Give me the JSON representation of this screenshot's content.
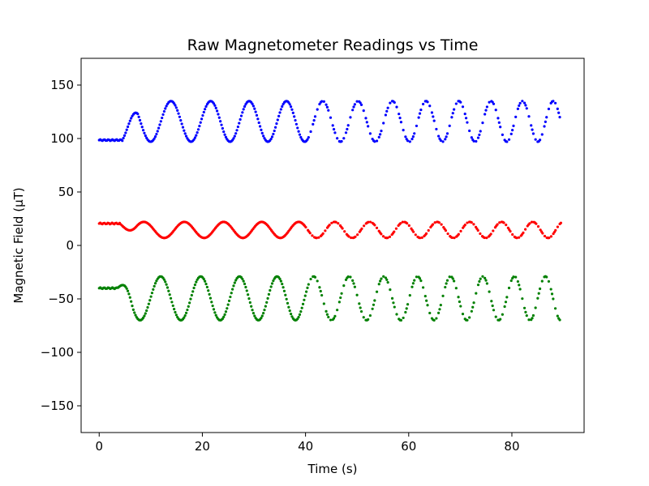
{
  "chart_data": {
    "type": "scatter",
    "title": "Raw Magnetometer Readings vs Time",
    "xlabel": "Time (s)",
    "ylabel": "Magnetic Field (µT)",
    "xlim": [
      -3.5,
      94
    ],
    "ylim": [
      -175,
      175
    ],
    "xticks": [
      0,
      20,
      40,
      60,
      80
    ],
    "yticks": [
      -150,
      -100,
      -50,
      0,
      50,
      100,
      150
    ],
    "grid": false,
    "legend": "none",
    "series": [
      {
        "color": "#0000ff",
        "offset": 116,
        "amplitude": 19,
        "baseline": 98.5,
        "phase": 3.3,
        "freq_start": 0.12,
        "freq_end": 0.145,
        "t_start": 0,
        "t_end": 89.5,
        "n_points": 420,
        "flat_until": 4.5
      },
      {
        "color": "#ff0000",
        "offset": 14.5,
        "amplitude": 7.5,
        "baseline": 20.5,
        "phase": 1.2,
        "freq_start": 0.12,
        "freq_end": 0.145,
        "t_start": 0,
        "t_end": 89.5,
        "n_points": 430,
        "flat_until": 4.0
      },
      {
        "color": "#008000",
        "offset": -49.5,
        "amplitude": 20.5,
        "baseline": -40,
        "phase": 4.9,
        "freq_start": 0.12,
        "freq_end": 0.145,
        "t_start": 0,
        "t_end": 89.5,
        "n_points": 420,
        "flat_until": 3.5
      }
    ]
  }
}
